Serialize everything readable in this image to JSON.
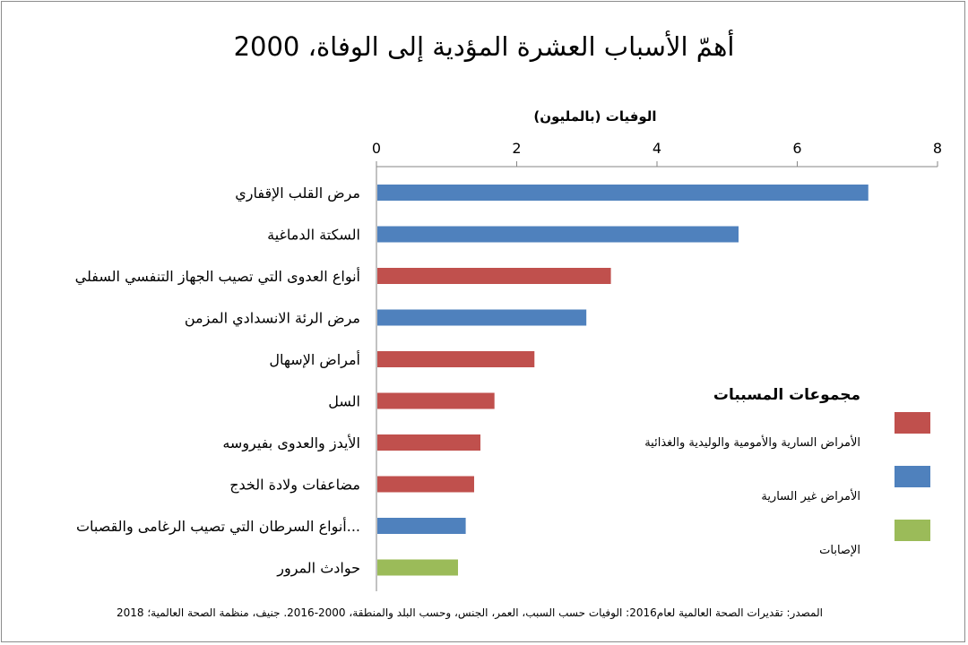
{
  "chart_data": {
    "type": "bar",
    "orientation": "horizontal",
    "title": "أهمّ الأسباب العشرة المؤدية إلى الوفاة، 2000",
    "xlabel": "الوفيات (بالمليون)",
    "xlim": [
      0,
      8
    ],
    "xticks": [
      0,
      2,
      4,
      6,
      8
    ],
    "grid": false,
    "legend_position": "right",
    "legend_title": "مجموعات المسببات",
    "groups": [
      {
        "name": "الأمراض السارية والأمومية والوليدية والغذائية",
        "color": "#c0504d"
      },
      {
        "name": "الأمراض غير السارية",
        "color": "#4f81bd"
      },
      {
        "name": "الإصابات",
        "color": "#9bbb59"
      }
    ],
    "categories": [
      "مرض القلب الإقفاري",
      "السكتة الدماغية",
      "أنواع العدوى التي تصيب الجهاز التنفسي السفلي",
      "مرض الرئة الانسدادي المزمن",
      "أمراض الإسهال",
      "السل",
      "الأيدز والعدوى بفيروسه",
      "مضاعفات ولادة الخدج",
      "أنواع السرطان التي تصيب الرغامى والقصبات...",
      "حوادث المرور"
    ],
    "values": [
      7.0,
      5.15,
      3.33,
      2.98,
      2.24,
      1.67,
      1.47,
      1.38,
      1.26,
      1.15
    ],
    "value_groups": [
      1,
      1,
      0,
      1,
      0,
      0,
      0,
      0,
      1,
      2
    ],
    "source": "المصدر: تقديرات الصحة العالمية لعام2016: الوفيات حسب السبب، العمر، الجنس، وحسب البلد والمنطقة، 2000-2016. جنيف، منظمة الصحة العالمية؛ 2018"
  }
}
